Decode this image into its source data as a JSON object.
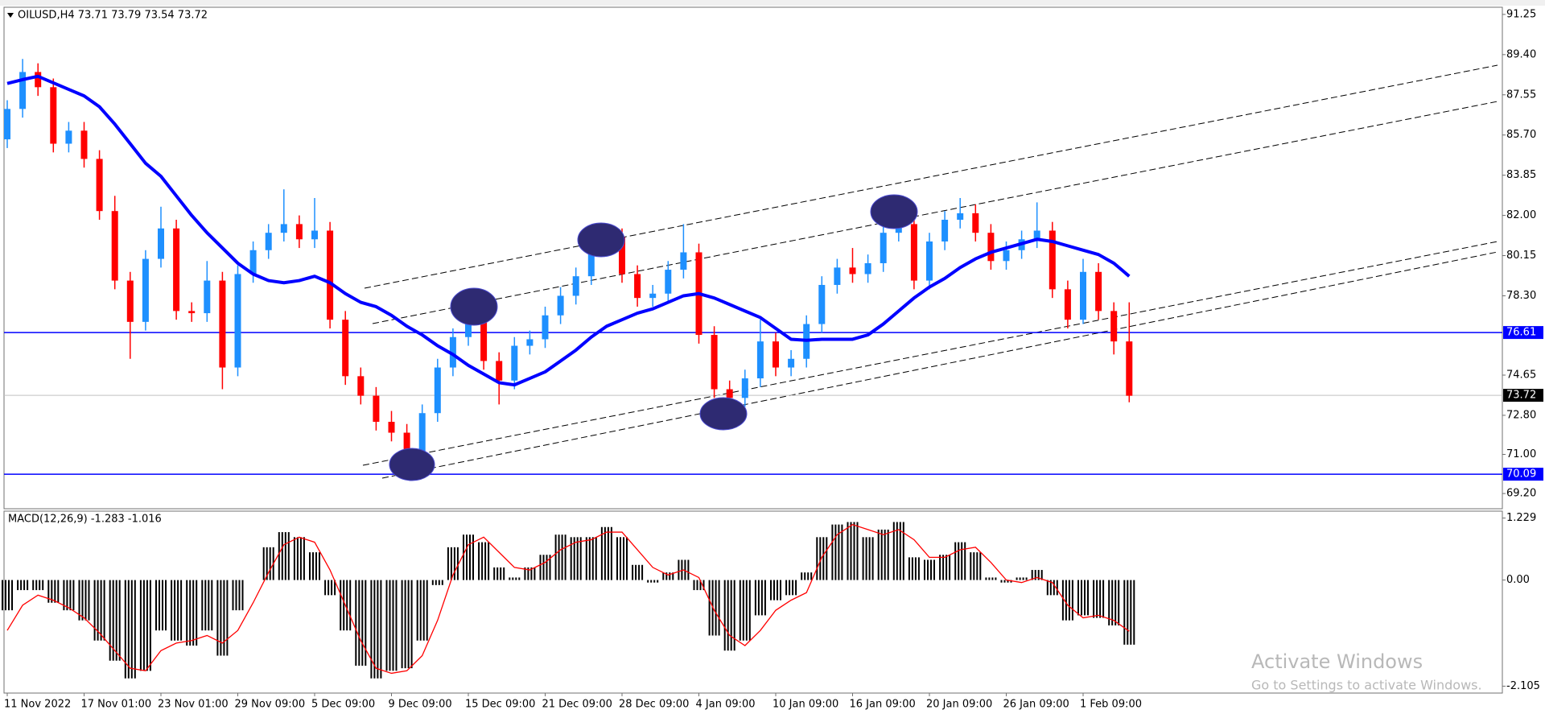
{
  "chart_data": [
    {
      "type": "candlestick",
      "title": "OILUSD,H4  73.71 73.79 73.54 73.72",
      "categories": [
        "11 Nov 2022",
        null,
        null,
        null,
        null,
        "17 Nov 01:00",
        null,
        null,
        null,
        null,
        "23 Nov 01:00",
        null,
        null,
        null,
        null,
        "29 Nov 09:00",
        null,
        null,
        null,
        null,
        "5 Dec 09:00",
        null,
        null,
        null,
        null,
        "9 Dec 09:00",
        null,
        null,
        null,
        null,
        "15 Dec 09:00",
        null,
        null,
        null,
        null,
        "21 Dec 09:00",
        null,
        null,
        null,
        null,
        "28 Dec 09:00",
        null,
        null,
        null,
        null,
        "4 Jan 09:00",
        null,
        null,
        null,
        null,
        "10 Jan 09:00",
        null,
        null,
        null,
        null,
        "16 Jan 09:00",
        null,
        null,
        null,
        null,
        "20 Jan 09:00",
        null,
        null,
        null,
        null,
        "26 Jan 09:00",
        null,
        null,
        null,
        null,
        "1 Feb 09:00",
        null,
        null,
        null
      ],
      "open": [
        85.5,
        86.9,
        88.6,
        87.9,
        85.3,
        85.9,
        84.6,
        82.2,
        79.0,
        77.1,
        80.0,
        81.4,
        77.6,
        77.5,
        79.0,
        75.0,
        79.3,
        80.4,
        81.2,
        81.6,
        80.9,
        81.3,
        77.2,
        74.6,
        73.7,
        72.5,
        72.0,
        71.1,
        72.9,
        75.0,
        76.4,
        77.3,
        75.3,
        74.4,
        76.0,
        76.3,
        77.4,
        78.3,
        79.2,
        80.5,
        81.0,
        79.3,
        78.2,
        78.4,
        79.5,
        80.3,
        76.5,
        74.0,
        73.6,
        74.5,
        76.2,
        75.0,
        75.4,
        77.0,
        78.8,
        79.6,
        79.3,
        79.8,
        81.2,
        81.6,
        79.0,
        80.8,
        81.8,
        82.1,
        81.2,
        79.9,
        80.4,
        80.9,
        81.3,
        78.6,
        77.2,
        79.4,
        77.6,
        76.2
      ],
      "high": [
        87.3,
        89.2,
        89.0,
        88.3,
        86.3,
        86.3,
        85.0,
        82.9,
        79.4,
        80.4,
        82.4,
        81.8,
        78.0,
        79.9,
        79.4,
        79.7,
        80.8,
        81.6,
        83.2,
        82.0,
        82.8,
        81.7,
        77.6,
        75.0,
        74.1,
        73.0,
        72.4,
        73.3,
        75.4,
        76.8,
        78.1,
        77.7,
        75.7,
        76.4,
        76.7,
        77.8,
        78.7,
        79.6,
        80.9,
        81.5,
        81.4,
        79.7,
        78.8,
        79.9,
        81.6,
        80.7,
        76.9,
        74.4,
        74.9,
        77.2,
        76.6,
        75.8,
        77.4,
        79.2,
        80.0,
        80.5,
        80.2,
        81.6,
        82.5,
        82.0,
        81.2,
        82.2,
        82.8,
        82.5,
        81.6,
        80.8,
        81.3,
        82.6,
        81.7,
        79.0,
        80.0,
        79.8,
        78.0,
        78.0
      ],
      "low": [
        85.1,
        86.5,
        87.5,
        84.9,
        84.9,
        84.2,
        81.8,
        78.6,
        75.4,
        76.7,
        79.6,
        77.2,
        77.1,
        77.1,
        74.0,
        74.6,
        78.9,
        80.0,
        80.8,
        80.5,
        80.5,
        76.8,
        74.2,
        73.3,
        72.1,
        71.6,
        70.5,
        70.7,
        72.5,
        74.6,
        76.0,
        74.9,
        73.3,
        74.0,
        75.6,
        75.9,
        77.0,
        77.9,
        78.8,
        80.1,
        78.9,
        77.8,
        77.8,
        78.0,
        79.1,
        76.1,
        73.6,
        73.0,
        73.2,
        74.1,
        74.6,
        74.6,
        75.0,
        76.6,
        78.4,
        78.9,
        78.9,
        79.4,
        80.8,
        78.6,
        78.6,
        80.4,
        81.4,
        80.8,
        79.5,
        79.5,
        80.0,
        80.5,
        78.2,
        76.8,
        77.0,
        77.2,
        75.6,
        73.4
      ],
      "close": [
        86.9,
        88.6,
        87.9,
        85.3,
        85.9,
        84.6,
        82.2,
        79.0,
        77.1,
        80.0,
        81.4,
        77.6,
        77.5,
        79.0,
        75.0,
        79.3,
        80.4,
        81.2,
        81.6,
        80.9,
        81.3,
        77.2,
        74.6,
        73.7,
        72.5,
        72.0,
        71.1,
        72.9,
        75.0,
        76.4,
        77.3,
        75.3,
        74.4,
        76.0,
        76.3,
        77.4,
        78.3,
        79.2,
        80.5,
        81.0,
        79.3,
        78.2,
        78.4,
        79.5,
        80.3,
        76.5,
        74.0,
        73.6,
        74.5,
        76.2,
        75.0,
        75.4,
        77.0,
        78.8,
        79.6,
        79.3,
        79.8,
        81.2,
        81.6,
        79.0,
        80.8,
        81.8,
        82.1,
        81.2,
        79.9,
        80.4,
        80.9,
        81.3,
        78.6,
        77.2,
        79.4,
        77.6,
        76.2,
        73.7
      ],
      "up_color": "#1e90ff",
      "down_color": "#ff0000",
      "ma": {
        "color": "#0000ff",
        "values": [
          88.07,
          88.25,
          88.4,
          88.1,
          87.8,
          87.5,
          87.0,
          86.2,
          85.3,
          84.4,
          83.8,
          82.9,
          82.0,
          81.2,
          80.5,
          79.8,
          79.3,
          79.0,
          78.9,
          79.0,
          79.2,
          78.9,
          78.4,
          78.0,
          77.8,
          77.4,
          76.9,
          76.5,
          76.0,
          75.6,
          75.1,
          74.7,
          74.3,
          74.2,
          74.5,
          74.8,
          75.3,
          75.8,
          76.4,
          76.9,
          77.2,
          77.5,
          77.7,
          78.0,
          78.3,
          78.4,
          78.2,
          77.9,
          77.6,
          77.3,
          76.8,
          76.3,
          76.25,
          76.3,
          76.3,
          76.3,
          76.5,
          77.0,
          77.6,
          78.2,
          78.7,
          79.1,
          79.6,
          80.0,
          80.3,
          80.5,
          80.7,
          80.9,
          80.8,
          80.6,
          80.4,
          80.2,
          79.8,
          79.2
        ]
      },
      "hlines": [
        {
          "value": 76.61,
          "color": "#0000ff"
        },
        {
          "value": 70.09,
          "color": "#0000ff"
        }
      ],
      "last_price": 73.72,
      "ylim": [
        68.5,
        91.58
      ],
      "yticks": [
        91.25,
        {
          "value": 89.4,
          "label": "89.40"
        },
        87.55,
        {
          "value": 85.7,
          "label": "85.70"
        },
        83.85,
        {
          "value": 82,
          "label": "82.00"
        },
        80.15,
        {
          "value": 78.3,
          "label": "78.30"
        },
        74.65,
        {
          "value": 72.8,
          "label": "72.80"
        },
        {
          "value": 71,
          "label": "71.00"
        },
        {
          "value": 69.2,
          "label": "69.20"
        }
      ]
    },
    {
      "type": "bar",
      "title": "MACD(12,26,9) -1.283 -1.016",
      "values": [
        -0.6,
        -0.2,
        -0.2,
        -0.45,
        -0.6,
        -0.8,
        -1.2,
        -1.6,
        -1.95,
        -1.8,
        -1.0,
        -1.2,
        -1.3,
        -1.0,
        -1.5,
        -0.6,
        0.0,
        0.65,
        0.95,
        0.85,
        0.55,
        -0.3,
        -1.0,
        -1.7,
        -1.95,
        -1.8,
        -1.75,
        -1.2,
        -0.1,
        0.65,
        0.9,
        0.75,
        0.25,
        0.05,
        0.25,
        0.5,
        0.9,
        0.85,
        0.85,
        1.05,
        0.85,
        0.3,
        -0.05,
        0.15,
        0.4,
        -0.2,
        -1.1,
        -1.4,
        -1.2,
        -0.7,
        -0.4,
        -0.3,
        0.15,
        0.85,
        1.1,
        1.15,
        0.85,
        1.0,
        1.15,
        0.45,
        0.4,
        0.5,
        0.75,
        0.55,
        0.05,
        -0.05,
        0.05,
        0.2,
        -0.3,
        -0.8,
        -0.7,
        -0.75,
        -0.9,
        -1.283
      ],
      "color": "#000000",
      "signal": {
        "color": "#ff0000",
        "values": [
          -1.0,
          -0.5,
          -0.3,
          -0.4,
          -0.55,
          -0.75,
          -1.05,
          -1.4,
          -1.75,
          -1.8,
          -1.4,
          -1.25,
          -1.2,
          -1.1,
          -1.25,
          -1.0,
          -0.45,
          0.15,
          0.7,
          0.85,
          0.75,
          0.2,
          -0.5,
          -1.2,
          -1.75,
          -1.85,
          -1.8,
          -1.5,
          -0.8,
          0.1,
          0.7,
          0.85,
          0.55,
          0.25,
          0.2,
          0.35,
          0.6,
          0.75,
          0.8,
          0.95,
          0.95,
          0.6,
          0.25,
          0.1,
          0.2,
          0.05,
          -0.6,
          -1.1,
          -1.3,
          -1.0,
          -0.6,
          -0.4,
          -0.25,
          0.45,
          0.9,
          1.1,
          1.0,
          0.9,
          1.0,
          0.8,
          0.45,
          0.45,
          0.6,
          0.65,
          0.35,
          0.0,
          -0.05,
          0.05,
          -0.05,
          -0.5,
          -0.75,
          -0.7,
          -0.8,
          -1.016
        ]
      },
      "ylim": [
        -2.242,
        1.366
      ],
      "yticks": [
        1.229,
        {
          "value": 0,
          "label": "0.00"
        },
        -2.105
      ]
    }
  ],
  "watermark": {
    "title": "Activate Windows",
    "subtitle": "Go to Settings to activate Windows."
  }
}
